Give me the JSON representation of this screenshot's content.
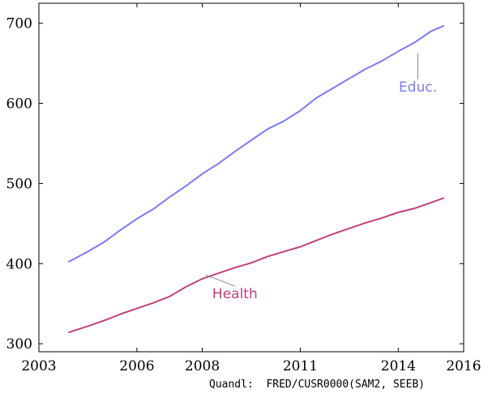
{
  "chart_data": {
    "type": "line",
    "title": "",
    "xlabel": "",
    "ylabel": "",
    "xlim": [
      2003,
      2016
    ],
    "ylim": [
      290,
      725
    ],
    "xticks": [
      2003,
      2006,
      2008,
      2011,
      2014,
      2016
    ],
    "xtick_labels": [
      "2003",
      "2006",
      "2008",
      "2011",
      "2014",
      "2016"
    ],
    "yticks": [
      300,
      400,
      500,
      600,
      700
    ],
    "ytick_labels": [
      "300",
      "400",
      "500",
      "600",
      "700"
    ],
    "grid": false,
    "legend": "none",
    "series": [
      {
        "name": "Educ.",
        "color": "#7b7bef",
        "label_at": [
          2014.6,
          621
        ],
        "leader_from": [
          2014.6,
          630
        ],
        "leader_to": [
          2014.6,
          663
        ],
        "x": [
          2003.9,
          2004.5,
          2005.0,
          2005.5,
          2006.0,
          2006.5,
          2007.0,
          2007.5,
          2008.0,
          2008.5,
          2009.0,
          2009.5,
          2010.0,
          2010.5,
          2011.0,
          2011.5,
          2012.0,
          2012.5,
          2013.0,
          2013.5,
          2014.0,
          2014.5,
          2015.0,
          2015.4
        ],
        "values": [
          402,
          415,
          427,
          442,
          456,
          468,
          483,
          497,
          512,
          525,
          540,
          554,
          568,
          578,
          591,
          607,
          619,
          631,
          643,
          653,
          665,
          676,
          690,
          697
        ]
      },
      {
        "name": "Health",
        "color": "#c0407f",
        "label_at": [
          2009.0,
          363
        ],
        "leader_from": [
          2008.1,
          386
        ],
        "leader_to": [
          2009.0,
          372
        ],
        "x": [
          2003.9,
          2004.5,
          2005.0,
          2005.5,
          2006.0,
          2006.5,
          2007.0,
          2007.5,
          2008.0,
          2008.5,
          2009.0,
          2009.5,
          2010.0,
          2010.5,
          2011.0,
          2011.5,
          2012.0,
          2012.5,
          2013.0,
          2013.5,
          2014.0,
          2014.5,
          2015.0,
          2015.4
        ],
        "values": [
          314,
          322,
          329,
          337,
          344,
          351,
          359,
          371,
          381,
          388,
          395,
          401,
          409,
          415,
          421,
          429,
          437,
          444,
          451,
          457,
          464,
          469,
          476,
          482
        ]
      }
    ]
  },
  "source_note": "Quandl:  FRED/CUSR0000(SAM2, SEEB)"
}
